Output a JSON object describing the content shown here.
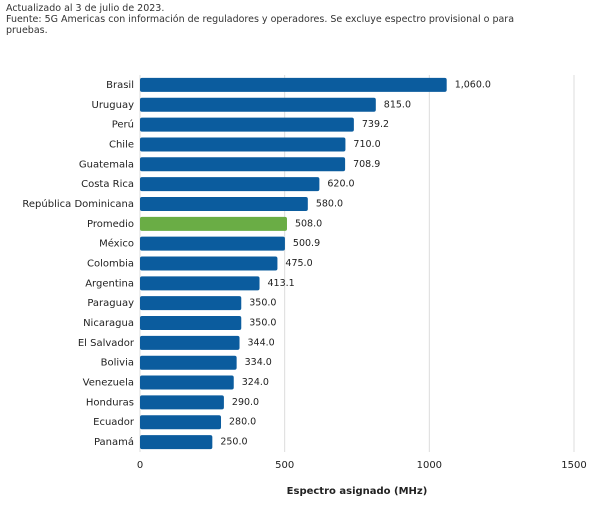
{
  "chart_data": {
    "type": "bar",
    "orientation": "horizontal",
    "notes": [
      "Actualizado al 3 de julio de 2023.",
      "Fuente: 5G Americas con información de reguladores y operadores. Se excluye espectro provisional o para pruebas."
    ],
    "categories": [
      "Brasil",
      "Uruguay",
      "Perú",
      "Chile",
      "Guatemala",
      "Costa Rica",
      "República Dominicana",
      "Promedio",
      "México",
      "Colombia",
      "Argentina",
      "Paraguay",
      "Nicaragua",
      "El Salvador",
      "Bolivia",
      "Venezuela",
      "Honduras",
      "Ecuador",
      "Panamá"
    ],
    "values": [
      1060,
      815,
      739.2,
      710,
      708.9,
      620,
      580,
      508,
      500.9,
      475,
      413.1,
      350,
      350,
      344,
      334,
      324,
      290,
      280,
      250
    ],
    "value_labels": [
      "1,060.0",
      "815.0",
      "739.2",
      "710.0",
      "708.9",
      "620.0",
      "580.0",
      "508.0",
      "500.9",
      "475.0",
      "413.1",
      "350.0",
      "350.0",
      "344.0",
      "334.0",
      "324.0",
      "290.0",
      "280.0",
      "250.0"
    ],
    "colors": [
      "#0b5c9e",
      "#0b5c9e",
      "#0b5c9e",
      "#0b5c9e",
      "#0b5c9e",
      "#0b5c9e",
      "#0b5c9e",
      "#6aad45",
      "#0b5c9e",
      "#0b5c9e",
      "#0b5c9e",
      "#0b5c9e",
      "#0b5c9e",
      "#0b5c9e",
      "#0b5c9e",
      "#0b5c9e",
      "#0b5c9e",
      "#0b5c9e",
      "#0b5c9e"
    ],
    "x_label": "Espectro asignado (MHz)",
    "xlim": [
      0,
      1500
    ],
    "xticks": [
      0,
      500,
      1000,
      1500
    ],
    "grid": true
  }
}
